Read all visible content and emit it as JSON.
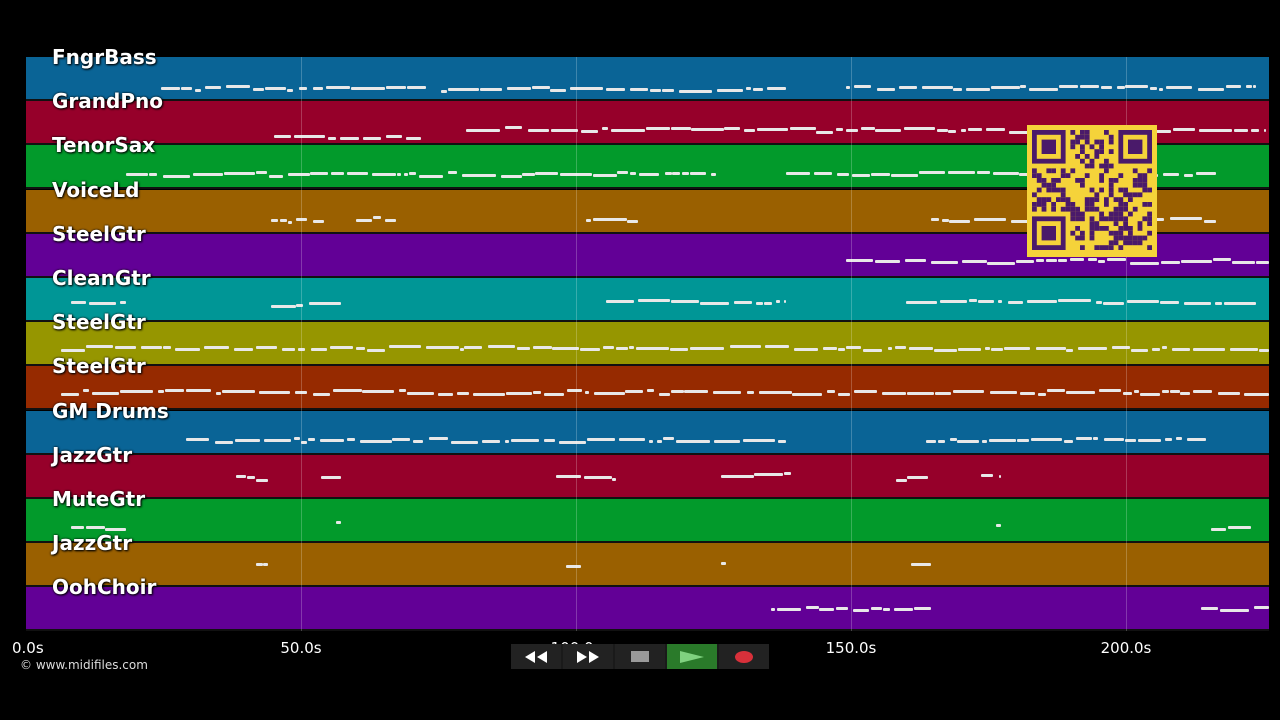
{
  "tracks": [
    {
      "label": "FngrBass",
      "color": "#0a6496"
    },
    {
      "label": "GrandPno",
      "color": "#96002a"
    },
    {
      "label": "TenorSax",
      "color": "#029a2b"
    },
    {
      "label": "VoiceLd",
      "color": "#9a6000"
    },
    {
      "label": "SteelGtr",
      "color": "#620096"
    },
    {
      "label": "CleanGtr",
      "color": "#009696"
    },
    {
      "label": "SteelGtr",
      "color": "#969600"
    },
    {
      "label": "SteelGtr",
      "color": "#962a00"
    },
    {
      "label": "GM Drums",
      "color": "#0a6496"
    },
    {
      "label": "JazzGtr",
      "color": "#96002a"
    },
    {
      "label": "MuteGtr",
      "color": "#029a2b"
    },
    {
      "label": "JazzGtr",
      "color": "#9a6000"
    },
    {
      "label": "OohChoir",
      "color": "#620096"
    }
  ],
  "timeline": {
    "ticks": [
      "0.0s",
      "50.0s",
      "100.0s",
      "150.0s",
      "200.0s"
    ],
    "tick_values": [
      0,
      50,
      100,
      150,
      200
    ],
    "max_seconds": 226
  },
  "copyright": "© www.midifiles.com",
  "controls": {
    "rewind_icon": "rewind-icon",
    "forward_icon": "fast-forward-icon",
    "stop_icon": "stop-icon",
    "play_icon": "play-icon",
    "record_icon": "record-icon"
  },
  "qr_icon": "qr-code-icon"
}
